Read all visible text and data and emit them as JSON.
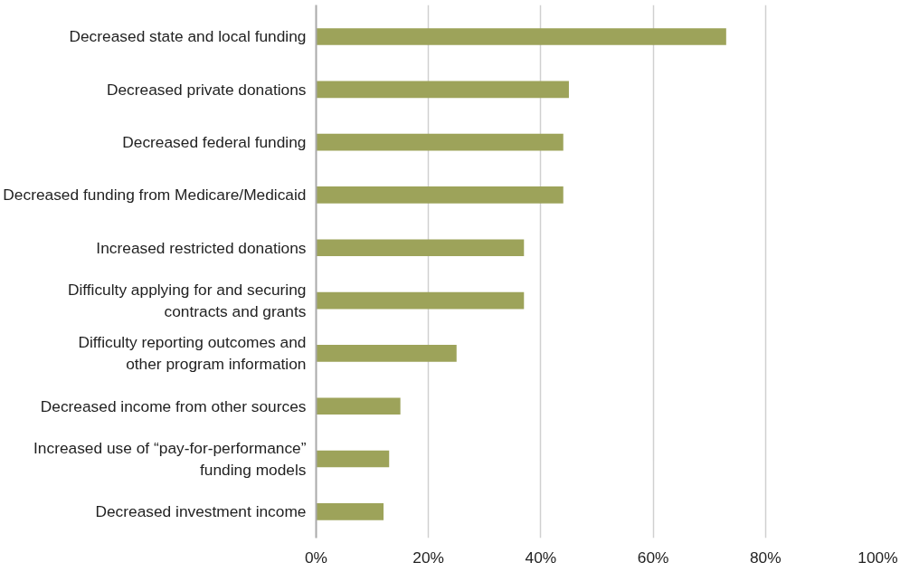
{
  "chart_data": {
    "type": "bar",
    "orientation": "horizontal",
    "categories": [
      "Decreased state and local funding",
      "Decreased private donations",
      "Decreased federal funding",
      "Decreased funding from Medicare/Medicaid",
      "Increased restricted donations",
      "Difficulty applying for and securing\ncontracts and grants",
      "Difficulty reporting outcomes and\nother program information",
      "Decreased income from other sources",
      "Increased use of “pay-for-performance”\nfunding models",
      "Decreased investment income"
    ],
    "values": [
      73,
      45,
      44,
      44,
      37,
      37,
      25,
      15,
      13,
      12
    ],
    "color": "#9da35a",
    "xlim": [
      0,
      100
    ],
    "xticks": [
      {
        "value": 0,
        "label": "0%"
      },
      {
        "value": 20,
        "label": "20%"
      },
      {
        "value": 40,
        "label": "40%"
      },
      {
        "value": 60,
        "label": "60%"
      },
      {
        "value": 80,
        "label": "80%"
      },
      {
        "value": 100,
        "label": "100%"
      }
    ],
    "grid": "x"
  }
}
